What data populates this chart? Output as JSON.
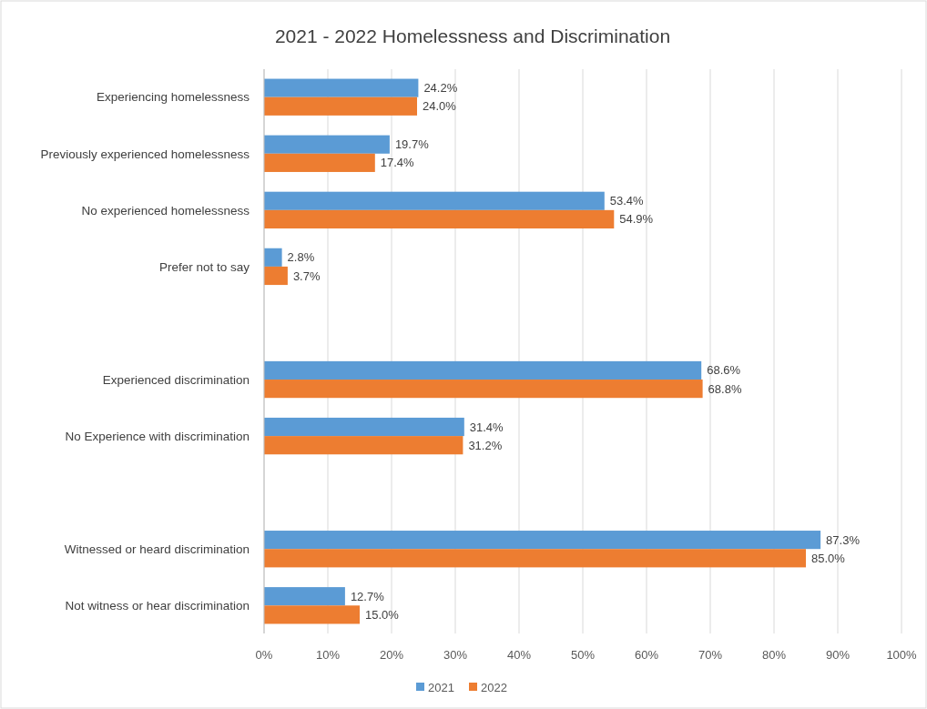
{
  "chart_data": {
    "type": "bar",
    "orientation": "horizontal",
    "title": "2021 - 2022 Homelessness  and Discrimination",
    "categories": [
      "Experiencing homelessness",
      "Previously experienced homelessness",
      "No experienced homelessness",
      "Prefer not to say",
      null,
      "Experienced discrimination",
      "No Experience with discrimination",
      null,
      "Witnessed or heard discrimination",
      "Not witness or hear discrimination"
    ],
    "series": [
      {
        "name": "2021",
        "color": "#5b9bd5",
        "values": [
          24.2,
          19.7,
          53.4,
          2.8,
          null,
          68.6,
          31.4,
          null,
          87.3,
          12.7
        ],
        "value_labels": [
          "24.2%",
          "19.7%",
          "53.4%",
          "2.8%",
          null,
          "68.6%",
          "31.4%",
          null,
          "87.3%",
          "12.7%"
        ]
      },
      {
        "name": "2022",
        "color": "#ed7d31",
        "values": [
          24.0,
          17.4,
          54.9,
          3.7,
          null,
          68.8,
          31.2,
          null,
          85.0,
          15.0
        ],
        "value_labels": [
          "24.0%",
          "17.4%",
          "54.9%",
          "3.7%",
          null,
          "68.8%",
          "31.2%",
          null,
          "85.0%",
          "15.0%"
        ]
      }
    ],
    "xlim": [
      0,
      100
    ],
    "xticks": [
      {
        "value": 0,
        "label": "0%"
      },
      {
        "value": 10,
        "label": "10%"
      },
      {
        "value": 20,
        "label": "20%"
      },
      {
        "value": 30,
        "label": "30%"
      },
      {
        "value": 40,
        "label": "40%"
      },
      {
        "value": 50,
        "label": "50%"
      },
      {
        "value": 60,
        "label": "60%"
      },
      {
        "value": 70,
        "label": "70%"
      },
      {
        "value": 80,
        "label": "80%"
      },
      {
        "value": 90,
        "label": "90%"
      },
      {
        "value": 100,
        "label": "100%"
      }
    ],
    "grid": "x",
    "legend": "bottom"
  }
}
